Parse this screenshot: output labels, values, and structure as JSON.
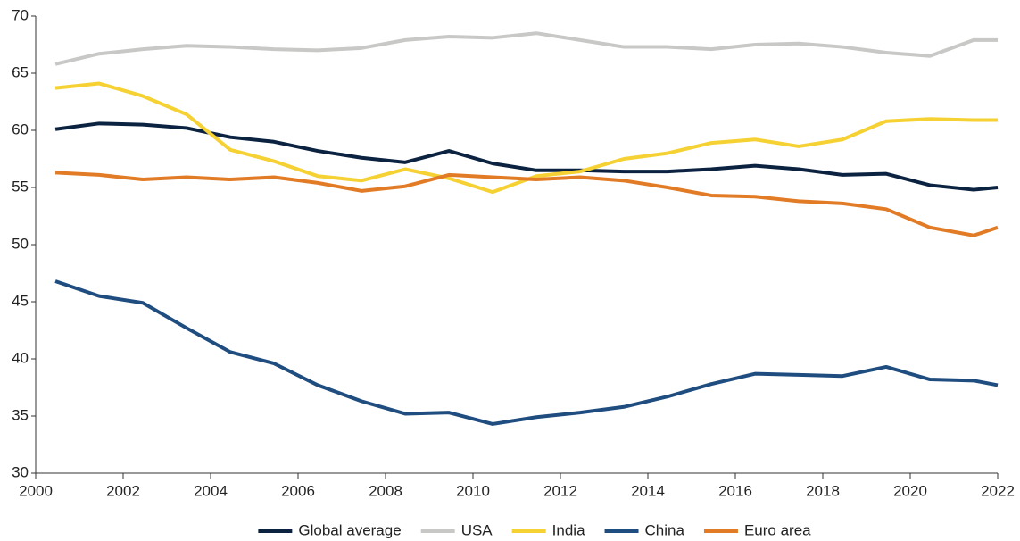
{
  "chart_data": {
    "type": "line",
    "x": [
      2000.45,
      2001.45,
      2002.45,
      2003.45,
      2004.45,
      2005.45,
      2006.45,
      2007.45,
      2008.45,
      2009.45,
      2010.45,
      2011.45,
      2012.45,
      2013.45,
      2014.45,
      2015.45,
      2016.45,
      2017.45,
      2018.45,
      2019.45,
      2020.45,
      2021.45,
      2022
    ],
    "series": [
      {
        "name": "Global average",
        "color": "#0b2341",
        "values": [
          60.1,
          60.6,
          60.5,
          60.2,
          59.4,
          59.0,
          58.2,
          57.6,
          57.2,
          58.2,
          57.1,
          56.5,
          56.5,
          56.4,
          56.4,
          56.6,
          56.9,
          56.6,
          56.1,
          56.2,
          55.2,
          54.8,
          55.0
        ]
      },
      {
        "name": "USA",
        "color": "#c8c8c6",
        "values": [
          65.8,
          66.7,
          67.1,
          67.4,
          67.3,
          67.1,
          67.0,
          67.2,
          67.9,
          68.2,
          68.1,
          68.5,
          67.9,
          67.3,
          67.3,
          67.1,
          67.5,
          67.6,
          67.3,
          66.8,
          66.5,
          67.9,
          67.9
        ]
      },
      {
        "name": "India",
        "color": "#f6d133",
        "values": [
          63.7,
          64.1,
          63.0,
          61.4,
          58.3,
          57.3,
          56.0,
          55.6,
          56.6,
          55.8,
          54.6,
          56.0,
          56.4,
          57.5,
          58.0,
          58.9,
          59.2,
          58.6,
          59.2,
          60.8,
          61.0,
          60.9,
          60.9
        ]
      },
      {
        "name": "China",
        "color": "#1f4d80",
        "values": [
          46.8,
          45.5,
          44.9,
          42.7,
          40.6,
          39.6,
          37.7,
          36.3,
          35.2,
          35.3,
          34.3,
          34.9,
          35.3,
          35.8,
          36.7,
          37.8,
          38.7,
          38.6,
          38.5,
          39.3,
          38.2,
          38.1,
          37.7
        ]
      },
      {
        "name": "Euro area",
        "color": "#e27b25",
        "values": [
          56.3,
          56.1,
          55.7,
          55.9,
          55.7,
          55.9,
          55.4,
          54.7,
          55.1,
          56.1,
          55.9,
          55.7,
          55.9,
          55.6,
          55.0,
          54.3,
          54.2,
          53.8,
          53.6,
          53.1,
          51.5,
          50.8,
          51.5
        ]
      }
    ],
    "xlim": [
      2000,
      2022
    ],
    "xticks": [
      2000,
      2002,
      2004,
      2006,
      2008,
      2010,
      2012,
      2014,
      2016,
      2018,
      2020,
      2022
    ],
    "ylim": [
      30,
      70
    ],
    "yticks": [
      30,
      35,
      40,
      45,
      50,
      55,
      60,
      65,
      70
    ],
    "legend": "bottom"
  }
}
